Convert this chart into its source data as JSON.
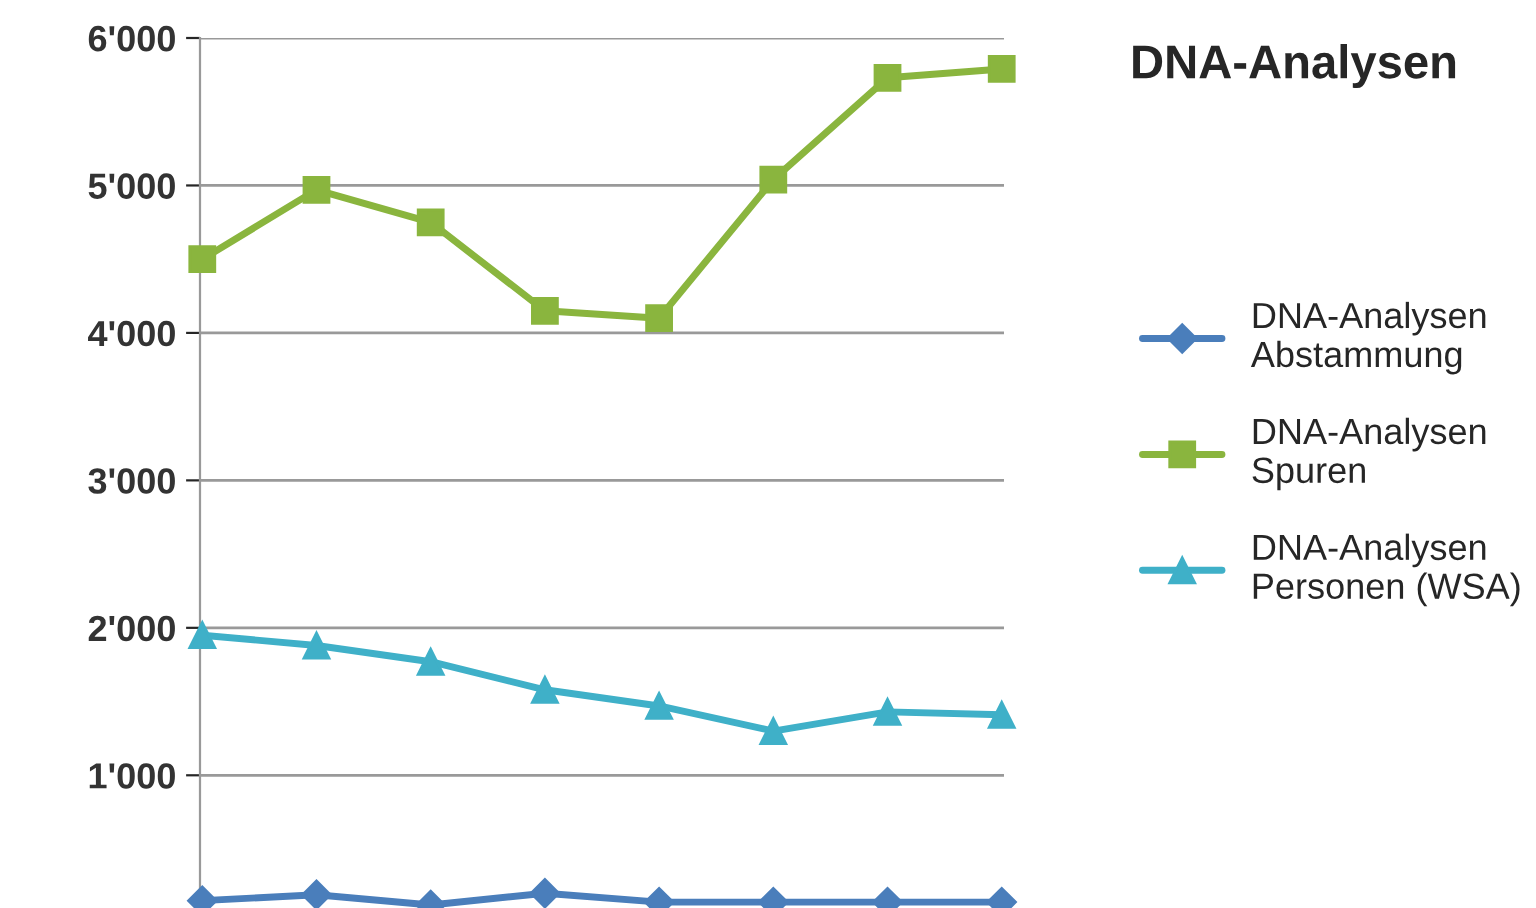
{
  "chart_data": {
    "type": "line",
    "title": "DNA-Analysen",
    "categories": [
      null,
      null,
      null,
      null,
      null,
      null,
      null,
      null
    ],
    "series": [
      {
        "name": "DNA-Analysen Abstammung",
        "color": "#4a7ebb",
        "marker": "diamond",
        "values": [
          150,
          190,
          120,
          200,
          140,
          140,
          140,
          140
        ]
      },
      {
        "name": "DNA-Analysen Spuren",
        "color": "#8ab53e",
        "marker": "square",
        "values": [
          4500,
          4970,
          4750,
          4150,
          4100,
          5040,
          5730,
          5790
        ]
      },
      {
        "name": "DNA-Analysen Personen (WSA)",
        "color": "#3fb0c8",
        "marker": "triangle",
        "values": [
          1950,
          1880,
          1770,
          1580,
          1470,
          1300,
          1430,
          1410
        ]
      }
    ],
    "ylim": [
      100,
      6000
    ],
    "yticks": [
      {
        "value": 1000,
        "label": "1'000"
      },
      {
        "value": 2000,
        "label": "2'000"
      },
      {
        "value": 3000,
        "label": "3'000"
      },
      {
        "value": 4000,
        "label": "4'000"
      },
      {
        "value": 5000,
        "label": "5'000"
      },
      {
        "value": 6000,
        "label": "6'000"
      }
    ],
    "grid": "y",
    "legend": "right",
    "tick_labels": "y"
  }
}
